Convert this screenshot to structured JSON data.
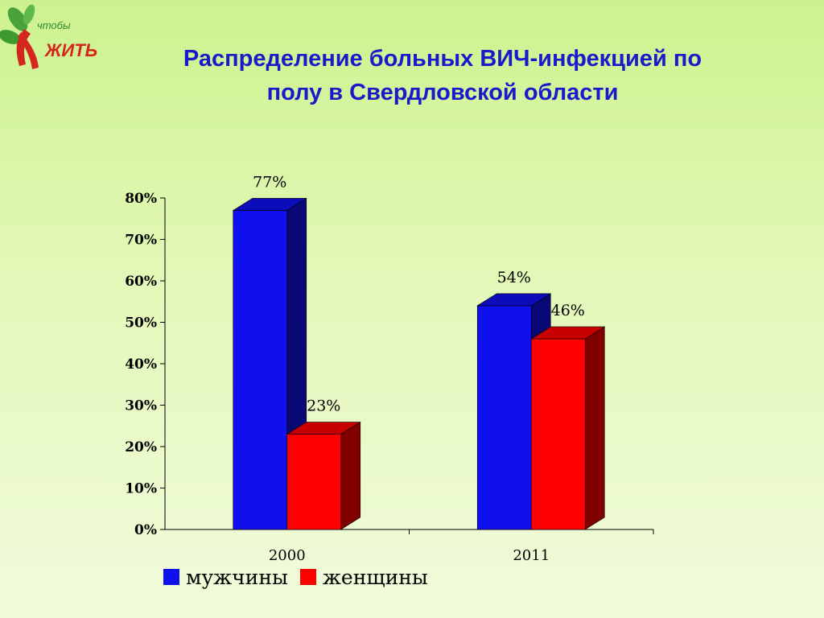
{
  "slide": {
    "title_line1": "Распределение больных ВИЧ-инфекцией по",
    "title_line2": "полу в Свердловской области"
  },
  "logo": {
    "text_small": "чтобы",
    "text_big": "ЖИТЬ",
    "leaf_color": "#4aa33a",
    "ribbon_color": "#d4261c"
  },
  "chart_data": {
    "type": "bar",
    "title": "",
    "xlabel": "",
    "ylabel": "",
    "categories": [
      "2000",
      "2011"
    ],
    "series": [
      {
        "name": "мужчины",
        "values": [
          77,
          54
        ],
        "labels": [
          "77%",
          "54%"
        ],
        "color": "#1010ee"
      },
      {
        "name": "женщины",
        "values": [
          23,
          46
        ],
        "labels": [
          "23%",
          "46%"
        ],
        "color": "#ff0000"
      }
    ],
    "ylim": [
      0,
      80
    ],
    "yticks": [
      "0%",
      "10%",
      "20%",
      "30%",
      "40%",
      "50%",
      "60%",
      "70%",
      "80%"
    ],
    "grid": false,
    "legend_position": "bottom-left",
    "style": "3d-bar"
  }
}
